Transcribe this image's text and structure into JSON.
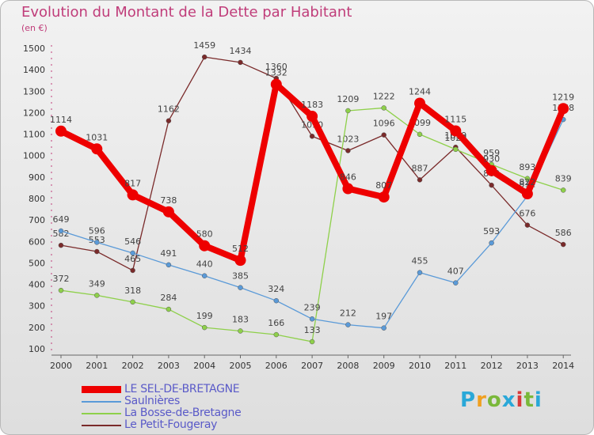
{
  "header": {
    "title": "Evolution du Montant de la Dette par Habitant",
    "unit": "(en €)"
  },
  "logo": {
    "text": "Proxiti",
    "colors": [
      "#2aa8d8",
      "#f0a020",
      "#7ab83a",
      "#2aa8d8",
      "#d83a3a",
      "#7ab83a",
      "#2aa8d8"
    ]
  },
  "chart_data": {
    "type": "line",
    "x": [
      "2000",
      "2001",
      "2002",
      "2003",
      "2004",
      "2005",
      "2006",
      "2007",
      "2008",
      "2009",
      "2010",
      "2011",
      "2012",
      "2013",
      "2014"
    ],
    "ylim": [
      100,
      1500
    ],
    "yticks": [
      100,
      200,
      300,
      400,
      500,
      600,
      700,
      800,
      900,
      1000,
      1100,
      1200,
      1300,
      1400,
      1500
    ],
    "grid": false,
    "legend": "bottom-left",
    "series": [
      {
        "name": "Le Petit-Fougeray",
        "color": "#7a2a2a",
        "values": [
          582,
          553,
          465,
          1162,
          1459,
          1434,
          1360,
          1090,
          1023,
          1096,
          887,
          1039,
          862,
          676,
          586
        ]
      },
      {
        "name": "La Bosse-de-Bretagne",
        "color": "#8ed04a",
        "values": [
          372,
          349,
          318,
          284,
          199,
          183,
          166,
          133,
          1209,
          1222,
          1099,
          1029,
          959,
          893,
          839
        ]
      },
      {
        "name": "Saulnières",
        "color": "#5a9ad8",
        "values": [
          649,
          596,
          546,
          491,
          440,
          385,
          324,
          239,
          212,
          197,
          455,
          407,
          593,
          812,
          1168
        ]
      },
      {
        "name": "LE SEL-DE-BRETAGNE",
        "color": "#ee0000",
        "values": [
          1114,
          1031,
          817,
          738,
          580,
          512,
          1332,
          1183,
          846,
          807,
          1244,
          1115,
          930,
          822,
          1219
        ]
      }
    ]
  }
}
